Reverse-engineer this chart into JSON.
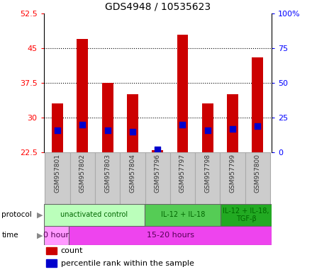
{
  "title": "GDS4948 / 10535623",
  "samples": [
    "GSM957801",
    "GSM957802",
    "GSM957803",
    "GSM957804",
    "GSM957796",
    "GSM957797",
    "GSM957798",
    "GSM957799",
    "GSM957800"
  ],
  "count_values": [
    33,
    47,
    37.5,
    35,
    23,
    48,
    33,
    35,
    43
  ],
  "count_base": 22.5,
  "percentile_values": [
    16,
    20,
    16,
    15,
    2,
    20,
    16,
    17,
    19
  ],
  "ylim_left": [
    22.5,
    52.5
  ],
  "ylim_right": [
    0,
    100
  ],
  "yticks_left": [
    22.5,
    30,
    37.5,
    45,
    52.5
  ],
  "yticks_right": [
    0,
    25,
    50,
    75,
    100
  ],
  "ytick_labels_left": [
    "22.5",
    "30",
    "37.5",
    "45",
    "52.5"
  ],
  "ytick_labels_right": [
    "0",
    "25",
    "50",
    "75",
    "100%"
  ],
  "bar_color": "#cc0000",
  "dot_color": "#0000cc",
  "protocol_groups": [
    {
      "label": "unactivated control",
      "start": 0,
      "end": 4,
      "color": "#bbffbb"
    },
    {
      "label": "IL-12 + IL-18",
      "start": 4,
      "end": 7,
      "color": "#55cc55"
    },
    {
      "label": "IL-12 + IL-18,\nTGF-β",
      "start": 7,
      "end": 9,
      "color": "#22aa22"
    }
  ],
  "time_groups": [
    {
      "label": "0 hour",
      "start": 0,
      "end": 1,
      "color": "#ff99ff"
    },
    {
      "label": "15-20 hours",
      "start": 1,
      "end": 9,
      "color": "#ee44ee"
    }
  ],
  "legend_count_label": "count",
  "legend_percentile_label": "percentile rank within the sample",
  "bar_width": 0.45,
  "dot_size": 35,
  "sample_bg_color": "#cccccc",
  "sample_border_color": "#aaaaaa",
  "grid_yticks": [
    30,
    37.5,
    45
  ],
  "protocol_text_color": "#006600",
  "time_text_color": "#550055"
}
